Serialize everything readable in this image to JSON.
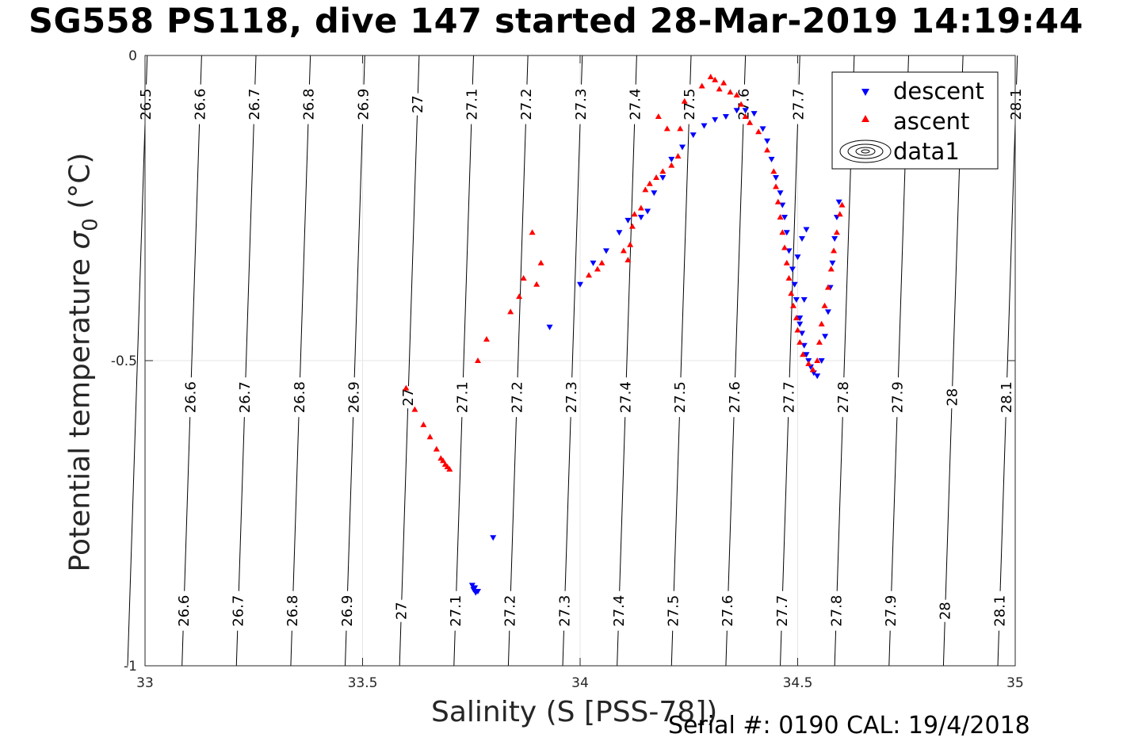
{
  "title": "SG558 PS118, dive 147 started 28-Mar-2019 14:19:44",
  "footer": "Serial #: 0190  CAL: 19/4/2018",
  "chart_data": {
    "type": "scatter",
    "xlabel": "Salinity (S [PSS-78])",
    "ylabel_main": "Potential temperature ",
    "ylabel_symbol": "σ",
    "ylabel_sub": "0",
    "ylabel_unit": " (°C)",
    "xlim": [
      33,
      35
    ],
    "ylim": [
      -1,
      0
    ],
    "y_reversed": true,
    "grid": true,
    "xticks": [
      "33",
      "33.5",
      "34",
      "34.5",
      "35"
    ],
    "yticks": [
      "0",
      "-0.5",
      "-1"
    ],
    "legend_position": "top-right",
    "legend": [
      {
        "label": "descent",
        "color": "#0000ff",
        "marker": "triangle-down"
      },
      {
        "label": "ascent",
        "color": "#ff0000",
        "marker": "triangle-up"
      },
      {
        "label": "data1",
        "color": "#000000",
        "marker": "contour"
      }
    ],
    "contours": {
      "levels": [
        26.5,
        26.6,
        26.7,
        26.8,
        26.9,
        27.0,
        27.1,
        27.2,
        27.3,
        27.4,
        27.5,
        27.6,
        27.7,
        27.8,
        27.9,
        28.0,
        28.1
      ],
      "labels": [
        "26.5",
        "26.6",
        "26.7",
        "26.8",
        "26.9",
        "27",
        "27.1",
        "27.2",
        "27.3",
        "27.4",
        "27.5",
        "27.6",
        "27.7",
        "27.8",
        "27.9",
        "28",
        "28.1"
      ],
      "salinity_at_top": [
        33.005,
        33.13,
        33.255,
        33.38,
        33.505,
        33.63,
        33.755,
        33.88,
        34.005,
        34.13,
        34.255,
        34.38,
        34.505,
        34.63,
        34.755,
        34.88,
        35.005
      ],
      "salinity_at_bottom": [
        32.96,
        33.085,
        33.21,
        33.335,
        33.46,
        33.585,
        33.71,
        33.835,
        33.96,
        34.085,
        34.21,
        34.335,
        34.46,
        34.585,
        34.71,
        34.835,
        34.96
      ],
      "label_rows": [
        {
          "theta": -0.08,
          "levels": [
            26.5,
            26.6,
            26.7,
            26.8,
            26.9,
            27.0,
            27.1,
            27.2,
            27.3,
            27.4,
            27.5,
            27.6,
            27.7,
            28.1
          ]
        },
        {
          "theta": -0.56,
          "levels": [
            26.6,
            26.7,
            26.8,
            26.9,
            27.0,
            27.1,
            27.2,
            27.3,
            27.4,
            27.5,
            27.6,
            27.7,
            27.8,
            27.9,
            28.0,
            28.1
          ]
        },
        {
          "theta": -0.91,
          "levels": [
            26.6,
            26.7,
            26.8,
            26.9,
            27.0,
            27.1,
            27.2,
            27.3,
            27.4,
            27.5,
            27.6,
            27.7,
            27.8,
            27.9,
            28.0,
            28.1
          ]
        }
      ]
    },
    "series": [
      {
        "name": "descent",
        "color": "#0000ff",
        "marker": "triangle-down",
        "points": [
          [
            33.755,
            -0.875
          ],
          [
            33.76,
            -0.88
          ],
          [
            33.765,
            -0.878
          ],
          [
            33.752,
            -0.868
          ],
          [
            33.758,
            -0.872
          ],
          [
            33.8,
            -0.79
          ],
          [
            33.93,
            -0.445
          ],
          [
            34.0,
            -0.375
          ],
          [
            34.03,
            -0.34
          ],
          [
            34.06,
            -0.32
          ],
          [
            34.09,
            -0.29
          ],
          [
            34.11,
            -0.27
          ],
          [
            34.14,
            -0.265
          ],
          [
            34.155,
            -0.255
          ],
          [
            34.17,
            -0.225
          ],
          [
            34.19,
            -0.2
          ],
          [
            34.21,
            -0.17
          ],
          [
            34.235,
            -0.15
          ],
          [
            34.26,
            -0.13
          ],
          [
            34.285,
            -0.115
          ],
          [
            34.31,
            -0.105
          ],
          [
            34.335,
            -0.1
          ],
          [
            34.36,
            -0.09
          ],
          [
            34.38,
            -0.09
          ],
          [
            34.4,
            -0.095
          ],
          [
            34.42,
            -0.12
          ],
          [
            34.43,
            -0.14
          ],
          [
            34.44,
            -0.17
          ],
          [
            34.45,
            -0.2
          ],
          [
            34.46,
            -0.225
          ],
          [
            34.465,
            -0.245
          ],
          [
            34.47,
            -0.265
          ],
          [
            34.475,
            -0.29
          ],
          [
            34.48,
            -0.32
          ],
          [
            34.488,
            -0.35
          ],
          [
            34.493,
            -0.375
          ],
          [
            34.497,
            -0.4
          ],
          [
            34.505,
            -0.43
          ],
          [
            34.51,
            -0.455
          ],
          [
            34.515,
            -0.475
          ],
          [
            34.52,
            -0.49
          ],
          [
            34.525,
            -0.5
          ],
          [
            34.53,
            -0.51
          ],
          [
            34.537,
            -0.52
          ],
          [
            34.545,
            -0.525
          ],
          [
            34.555,
            -0.5
          ],
          [
            34.563,
            -0.46
          ],
          [
            34.57,
            -0.42
          ],
          [
            34.575,
            -0.38
          ],
          [
            34.58,
            -0.34
          ],
          [
            34.585,
            -0.3
          ],
          [
            34.59,
            -0.265
          ],
          [
            34.595,
            -0.24
          ],
          [
            34.505,
            -0.44
          ],
          [
            34.515,
            -0.4
          ],
          [
            34.5,
            -0.33
          ],
          [
            34.51,
            -0.3
          ],
          [
            34.52,
            -0.285
          ]
        ]
      },
      {
        "name": "ascent",
        "color": "#ff0000",
        "marker": "triangle-up",
        "points": [
          [
            33.6,
            -0.545
          ],
          [
            33.62,
            -0.58
          ],
          [
            33.64,
            -0.605
          ],
          [
            33.655,
            -0.625
          ],
          [
            33.67,
            -0.645
          ],
          [
            33.68,
            -0.66
          ],
          [
            33.69,
            -0.67
          ],
          [
            33.7,
            -0.678
          ],
          [
            33.695,
            -0.674
          ],
          [
            33.685,
            -0.664
          ],
          [
            33.765,
            -0.5
          ],
          [
            33.785,
            -0.465
          ],
          [
            33.84,
            -0.42
          ],
          [
            33.86,
            -0.395
          ],
          [
            33.87,
            -0.365
          ],
          [
            33.9,
            -0.375
          ],
          [
            33.91,
            -0.34
          ],
          [
            33.89,
            -0.29
          ],
          [
            34.02,
            -0.36
          ],
          [
            34.04,
            -0.35
          ],
          [
            34.05,
            -0.34
          ],
          [
            34.1,
            -0.32
          ],
          [
            34.11,
            -0.335
          ],
          [
            34.115,
            -0.31
          ],
          [
            34.12,
            -0.28
          ],
          [
            34.125,
            -0.26
          ],
          [
            34.14,
            -0.25
          ],
          [
            34.16,
            -0.21
          ],
          [
            34.15,
            -0.22
          ],
          [
            34.175,
            -0.2
          ],
          [
            34.19,
            -0.19
          ],
          [
            34.21,
            -0.18
          ],
          [
            34.225,
            -0.165
          ],
          [
            34.23,
            -0.12
          ],
          [
            34.2,
            -0.12
          ],
          [
            34.18,
            -0.1
          ],
          [
            34.24,
            -0.075
          ],
          [
            34.28,
            -0.05
          ],
          [
            34.3,
            -0.035
          ],
          [
            34.31,
            -0.04
          ],
          [
            34.32,
            -0.055
          ],
          [
            34.33,
            -0.045
          ],
          [
            34.345,
            -0.06
          ],
          [
            34.36,
            -0.065
          ],
          [
            34.37,
            -0.08
          ],
          [
            34.38,
            -0.1
          ],
          [
            34.39,
            -0.11
          ],
          [
            34.41,
            -0.125
          ],
          [
            34.43,
            -0.155
          ],
          [
            34.445,
            -0.19
          ],
          [
            34.45,
            -0.215
          ],
          [
            34.455,
            -0.24
          ],
          [
            34.46,
            -0.265
          ],
          [
            34.465,
            -0.29
          ],
          [
            34.47,
            -0.315
          ],
          [
            34.475,
            -0.34
          ],
          [
            34.48,
            -0.365
          ],
          [
            34.485,
            -0.39
          ],
          [
            34.49,
            -0.41
          ],
          [
            34.497,
            -0.43
          ],
          [
            34.5,
            -0.45
          ],
          [
            34.505,
            -0.47
          ],
          [
            34.512,
            -0.49
          ],
          [
            34.525,
            -0.505
          ],
          [
            34.535,
            -0.515
          ],
          [
            34.545,
            -0.5
          ],
          [
            34.55,
            -0.47
          ],
          [
            34.555,
            -0.44
          ],
          [
            34.562,
            -0.41
          ],
          [
            34.57,
            -0.38
          ],
          [
            34.577,
            -0.35
          ],
          [
            34.583,
            -0.32
          ],
          [
            34.59,
            -0.29
          ],
          [
            34.597,
            -0.26
          ],
          [
            34.602,
            -0.245
          ]
        ]
      }
    ]
  }
}
